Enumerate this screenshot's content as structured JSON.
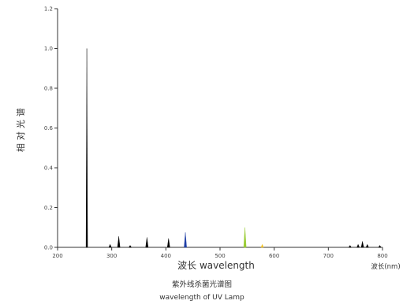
{
  "chart_data": {
    "type": "line",
    "title": "紫外线杀菌光谱图",
    "subtitle": "wavelength of UV Lamp",
    "xlabel": "波长 wavelength",
    "x_unit_label": "波长(nm)",
    "ylabel": "相对光谱",
    "xlim": [
      200,
      800
    ],
    "ylim": [
      0,
      1.2
    ],
    "x_ticks": [
      "200",
      "300",
      "400",
      "500",
      "600",
      "700",
      "800"
    ],
    "y_ticks": [
      "0.0",
      "0.2",
      "0.4",
      "0.6",
      "0.8",
      "1.0",
      "1.2"
    ],
    "grid": false,
    "legend": "none",
    "series": [
      {
        "color": "#000000",
        "x": [
          254,
          297,
          313,
          334,
          365,
          405,
          740,
          755,
          763,
          772,
          795
        ],
        "y": [
          1.0,
          0.015,
          0.055,
          0.01,
          0.05,
          0.045,
          0.01,
          0.015,
          0.03,
          0.015,
          0.01
        ]
      },
      {
        "color": "#1f3fa6",
        "x": [
          436
        ],
        "y": [
          0.075
        ]
      },
      {
        "color": "#99cc33",
        "x": [
          546
        ],
        "y": [
          0.1
        ]
      },
      {
        "color": "#f0c020",
        "x": [
          578
        ],
        "y": [
          0.015
        ]
      }
    ]
  }
}
